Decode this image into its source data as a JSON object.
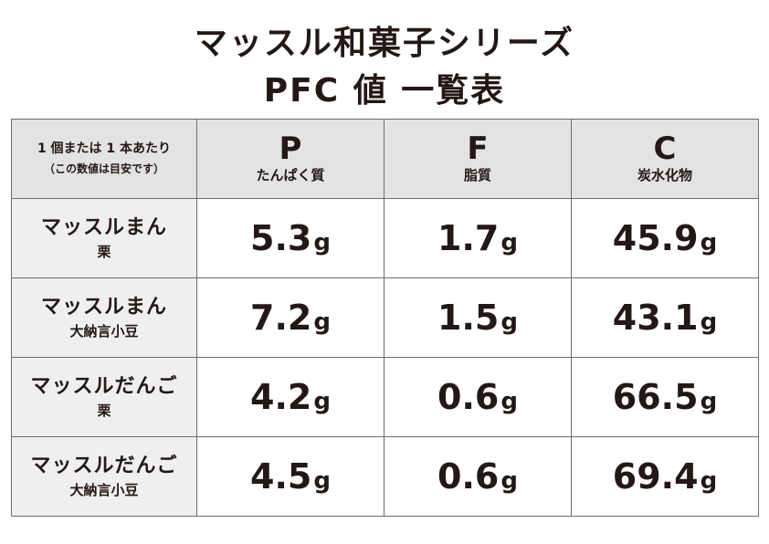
{
  "title_line1": "マッスル和菓子シリーズ",
  "title_line2": "PFC 値 一覧表",
  "corner": {
    "line1": "1 個または 1 本あたり",
    "line2": "（この数値は目安です）"
  },
  "columns": [
    {
      "letter": "P",
      "label": "たんぱく質"
    },
    {
      "letter": "F",
      "label": "脂質"
    },
    {
      "letter": "C",
      "label": "炭水化物"
    }
  ],
  "unit": "g",
  "rows": [
    {
      "name": "マッスルまん",
      "variant": "栗",
      "p": "5.3",
      "f": "1.7",
      "c": "45.9"
    },
    {
      "name": "マッスルまん",
      "variant": "大納言小豆",
      "p": "7.2",
      "f": "1.5",
      "c": "43.1"
    },
    {
      "name": "マッスルだんご",
      "variant": "栗",
      "p": "4.2",
      "f": "0.6",
      "c": "66.5"
    },
    {
      "name": "マッスルだんご",
      "variant": "大納言小豆",
      "p": "4.5",
      "f": "0.6",
      "c": "69.4"
    }
  ],
  "chart_data": {
    "type": "table",
    "title": "マッスル和菓子シリーズ PFC 値 一覧表",
    "columns": [
      "P たんぱく質",
      "F 脂質",
      "C 炭水化物"
    ],
    "unit": "g",
    "rows": [
      {
        "product": "マッスルまん 栗",
        "values": [
          5.3,
          1.7,
          45.9
        ]
      },
      {
        "product": "マッスルまん 大納言小豆",
        "values": [
          7.2,
          1.5,
          43.1
        ]
      },
      {
        "product": "マッスルだんご 栗",
        "values": [
          4.2,
          0.6,
          66.5
        ]
      },
      {
        "product": "マッスルだんご 大納言小豆",
        "values": [
          4.5,
          0.6,
          69.4
        ]
      }
    ]
  },
  "colors": {
    "header_bg": "#e3e3e3",
    "rowhead_bg": "#efefef",
    "border": "#6d6d6d",
    "text": "#231815"
  }
}
